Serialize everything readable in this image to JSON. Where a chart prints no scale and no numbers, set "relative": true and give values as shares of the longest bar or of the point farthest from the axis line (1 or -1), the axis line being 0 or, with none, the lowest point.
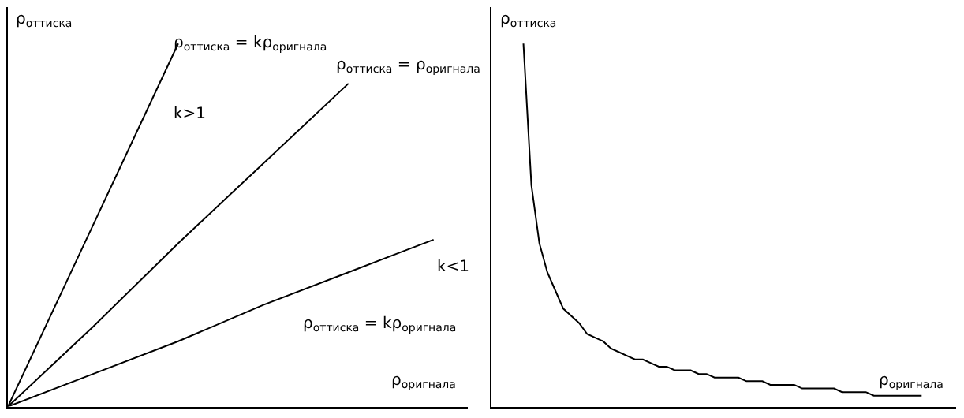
{
  "chart_data": [
    {
      "type": "line",
      "relative": true,
      "xlabel": "ρ$_{оригнала}$",
      "ylabel": "ρ$_{оттиска}$",
      "marker": "none",
      "line_style": "solid",
      "categories": [
        null,
        null,
        null,
        null,
        null,
        null
      ],
      "series": [
        {
          "color": "#000000",
          "values": [
            0,
            0.5,
            1,
            null,
            null,
            null
          ]
        },
        {
          "color": "#000000",
          "values": [
            0,
            0.22,
            0.45,
            0.67,
            0.89,
            null
          ]
        },
        {
          "color": "#000000",
          "values": [
            0,
            0.09,
            0.18,
            0.28,
            0.37,
            0.46
          ]
        }
      ],
      "annotations": [
        "ρ$_{оттиска}$ = kρ$_{оригнала}$",
        "k>1",
        "ρ$_{оттиска}$ = ρ$_{оригнала}$",
        "k<1",
        "ρ$_{оттиска}$ = kρ$_{оригнала}$"
      ]
    },
    {
      "type": "line",
      "relative": true,
      "xlabel": "ρ$_{оригнала}$",
      "ylabel": "ρ$_{оттиска}$",
      "marker": "none",
      "line_style": "solid",
      "categories": [
        null,
        null,
        null,
        null,
        null,
        null,
        null,
        null,
        null,
        null,
        null,
        null,
        null,
        null,
        null,
        null,
        null,
        null,
        null,
        null,
        null,
        null,
        null,
        null,
        null,
        null,
        null,
        null,
        null,
        null,
        null,
        null,
        null,
        null,
        null,
        null,
        null,
        null,
        null,
        null,
        null,
        null,
        null,
        null,
        null,
        null,
        null,
        null,
        null,
        null,
        null,
        null,
        null,
        null,
        null
      ],
      "series": [
        {
          "color": "#000000",
          "values": [
            null,
            null,
            null,
            null,
            1,
            0.61,
            0.45,
            0.37,
            0.32,
            0.27,
            0.25,
            0.23,
            0.2,
            0.19,
            0.18,
            0.16,
            0.15,
            0.14,
            0.13,
            0.13,
            0.12,
            0.11,
            0.11,
            0.1,
            0.1,
            0.1,
            0.09,
            0.09,
            0.08,
            0.08,
            0.08,
            0.08,
            0.07,
            0.07,
            0.07,
            0.06,
            0.06,
            0.06,
            0.06,
            0.05,
            0.05,
            0.05,
            0.05,
            0.05,
            0.04,
            0.04,
            0.04,
            0.04,
            0.03,
            0.03,
            0.03,
            0.03,
            0.03,
            0.03,
            0.03
          ]
        }
      ]
    }
  ]
}
